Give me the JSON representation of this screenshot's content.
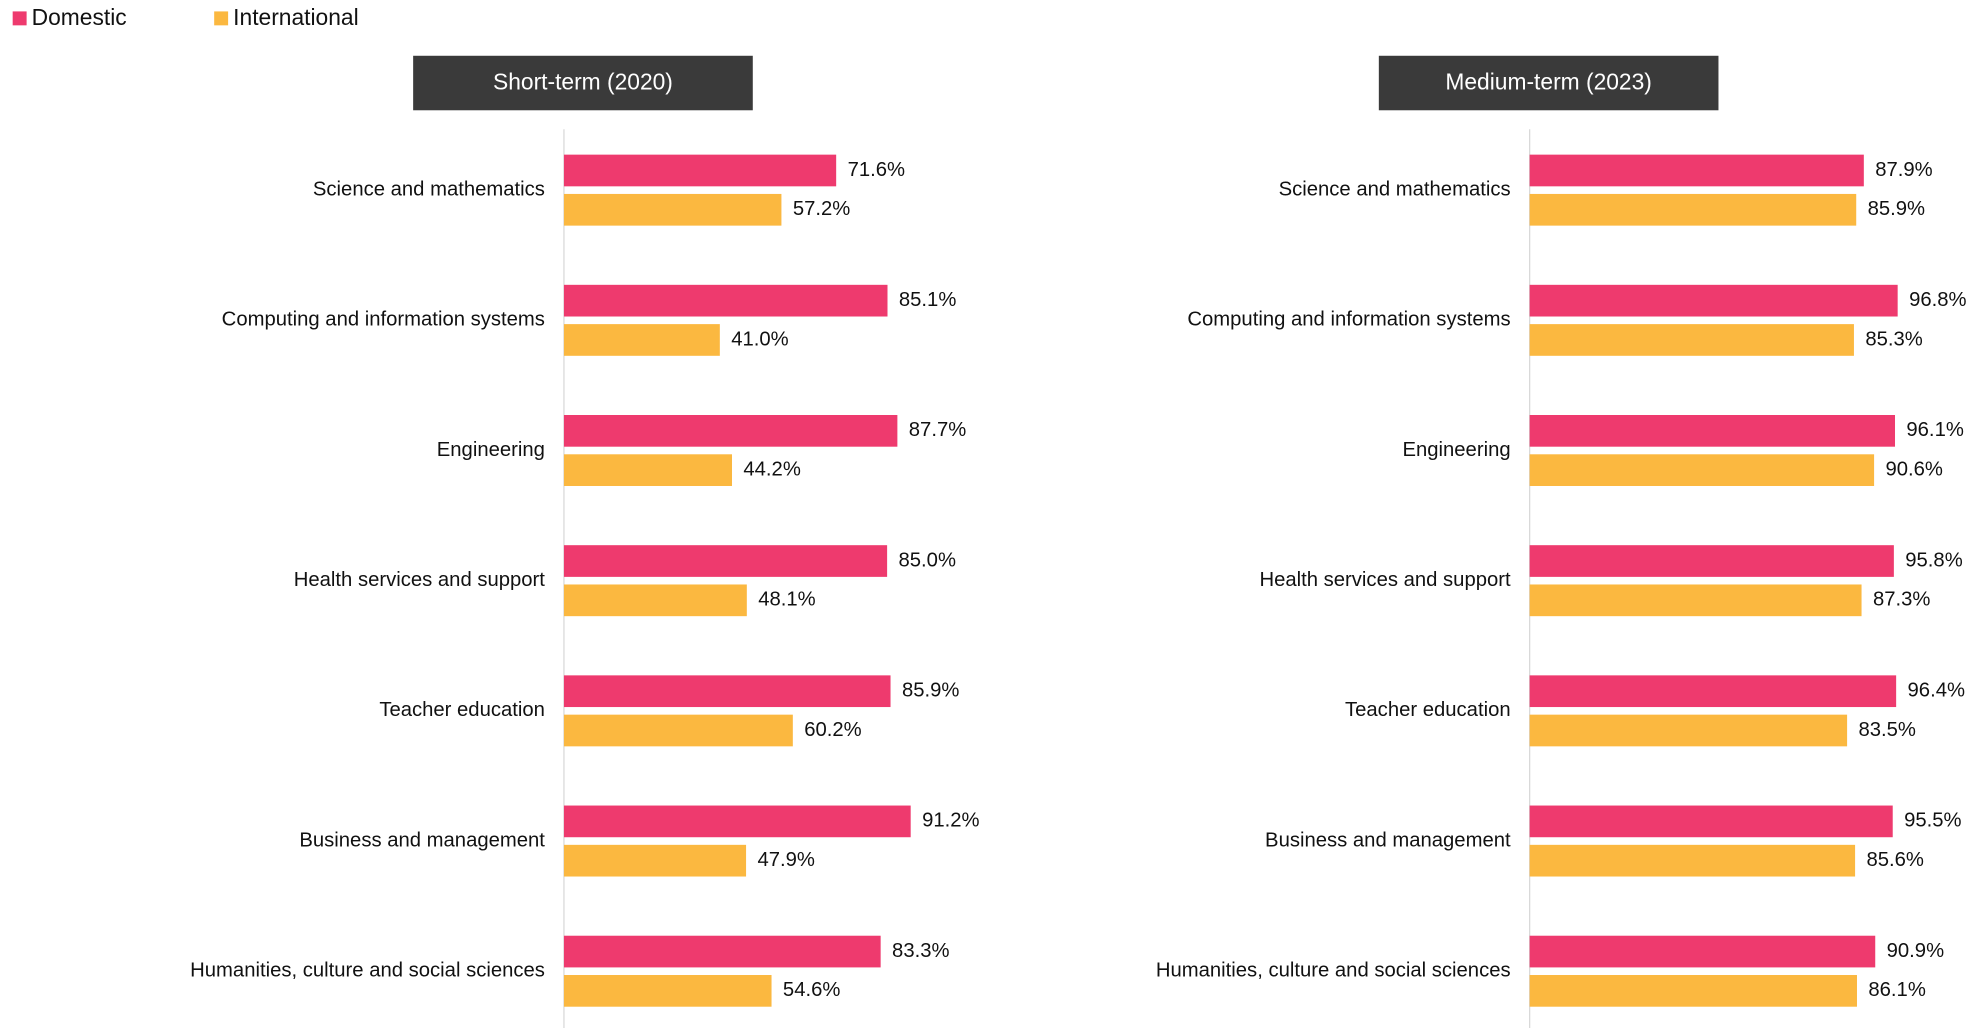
{
  "chart_data": [
    {
      "type": "bar",
      "title": "Short-term (2020)",
      "categories": [
        "Science and mathematics",
        "Computing and information systems",
        "Engineering",
        "Health services and support",
        "Teacher education",
        "Business and management",
        "Humanities, culture and social sciences"
      ],
      "series": [
        {
          "name": "Domestic",
          "color": "#ee3a6e",
          "values": [
            71.6,
            85.1,
            87.7,
            85.0,
            85.9,
            91.2,
            83.3
          ],
          "value_labels": [
            "71.6%",
            "85.1%",
            "87.7%",
            "85.0%",
            "85.9%",
            "91.2%",
            "83.3%"
          ]
        },
        {
          "name": "International",
          "color": "#fbb840",
          "values": [
            57.2,
            41.0,
            44.2,
            48.1,
            60.2,
            47.9,
            54.6
          ],
          "value_labels": [
            "57.2%",
            "41.0%",
            "44.2%",
            "48.1%",
            "60.2%",
            "47.9%",
            "54.6%"
          ]
        }
      ]
    },
    {
      "type": "bar",
      "title": "Medium-term (2023)",
      "categories": [
        "Science and mathematics",
        "Computing and information systems",
        "Engineering",
        "Health services and support",
        "Teacher education",
        "Business and management",
        "Humanities, culture and social sciences"
      ],
      "series": [
        {
          "color": "#ee3a6e",
          "values": [
            87.9,
            96.8,
            96.1,
            95.8,
            96.4,
            95.5,
            90.9
          ],
          "value_labels": [
            "87.9%",
            "96.8%",
            "96.1%",
            "95.8%",
            "96.4%",
            "95.5%",
            "90.9%"
          ]
        },
        {
          "color": "#fbb840",
          "values": [
            85.9,
            85.3,
            90.6,
            87.3,
            83.5,
            85.6,
            86.1
          ],
          "value_labels": [
            "85.9%",
            "85.3%",
            "90.6%",
            "87.3%",
            "83.5%",
            "85.6%",
            "86.1%"
          ]
        }
      ]
    }
  ]
}
